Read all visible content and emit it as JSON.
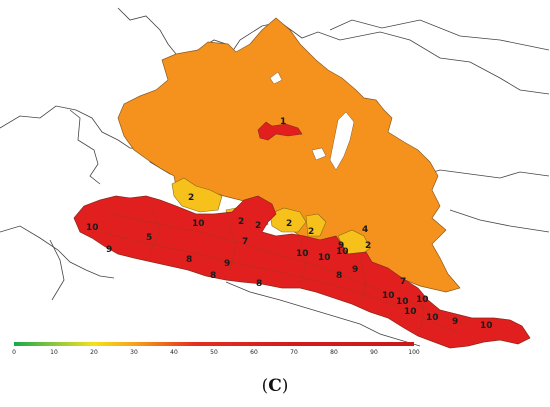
{
  "caption": {
    "open": "(",
    "letter": "C",
    "close": ")"
  },
  "colors": {
    "high": "#e11f1f",
    "mid": "#f5921e",
    "low": "#f7c11b",
    "outline": "#555555",
    "boundary": "#333333"
  },
  "legend": {
    "ticks": [
      "0",
      "10",
      "20",
      "30",
      "40",
      "50",
      "60",
      "70",
      "80",
      "90",
      "100"
    ],
    "gradient": [
      "#1aa84a",
      "#8cc63e",
      "#f3e21a",
      "#f7a21b",
      "#e3301f",
      "#d21c1c",
      "#c91a1a"
    ]
  },
  "zone_labels": [
    "1",
    "2",
    "2",
    "2",
    "2",
    "2",
    "2",
    "4",
    "5",
    "7",
    "7",
    "8",
    "8",
    "8",
    "8",
    "9",
    "9",
    "9",
    "9",
    "9",
    "10",
    "10",
    "10",
    "10",
    "10",
    "10",
    "10",
    "10",
    "10",
    "10",
    "10"
  ]
}
